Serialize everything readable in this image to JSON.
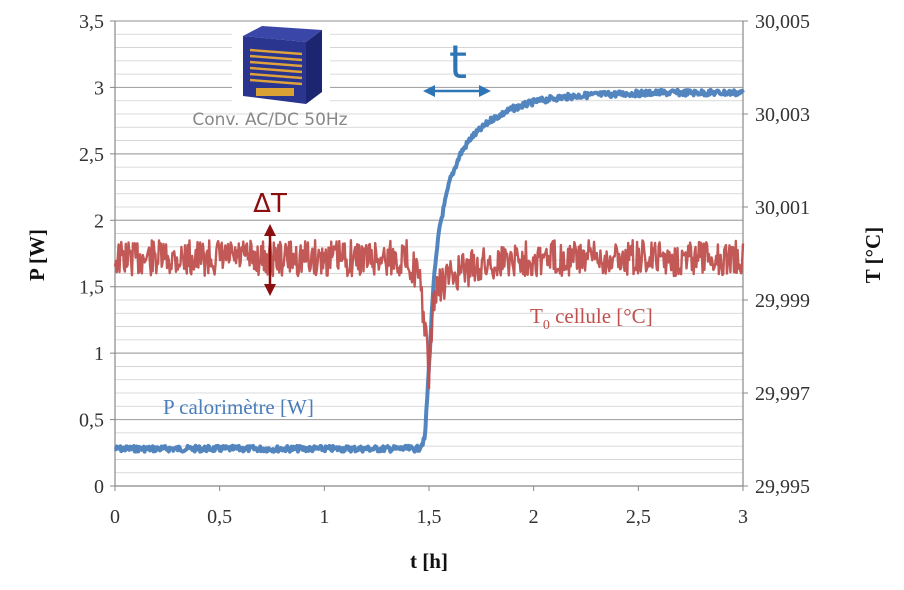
{
  "chart_data": {
    "type": "line",
    "xlabel": "t [h]",
    "ylabel_left": "P [W]",
    "ylabel_right": "T [°C]",
    "xlim": [
      0,
      3
    ],
    "ylim_left": [
      0,
      3.5
    ],
    "ylim_right": [
      29.995,
      30.005
    ],
    "x_ticks": [
      "0",
      "0,5",
      "1",
      "1,5",
      "2",
      "2,5",
      "3"
    ],
    "y_left_ticks": [
      "0",
      "0,5",
      "1",
      "1,5",
      "2",
      "2,5",
      "3",
      "3,5"
    ],
    "y_right_ticks": [
      "29,995",
      "29,997",
      "29,999",
      "30,001",
      "30,003",
      "30,005"
    ],
    "grid": true,
    "series": [
      {
        "name": "P calorimètre [W]",
        "axis": "left",
        "color": "#4a7ebb",
        "x": [
          0,
          0.25,
          0.5,
          0.75,
          1.0,
          1.25,
          1.45,
          1.48,
          1.5,
          1.52,
          1.55,
          1.6,
          1.65,
          1.7,
          1.8,
          1.9,
          2.0,
          2.1,
          2.2,
          2.3,
          2.4,
          2.5,
          2.6,
          2.75,
          3.0
        ],
        "y": [
          0.28,
          0.28,
          0.28,
          0.28,
          0.28,
          0.28,
          0.28,
          0.35,
          0.9,
          1.5,
          1.95,
          2.3,
          2.5,
          2.62,
          2.76,
          2.84,
          2.89,
          2.92,
          2.935,
          2.945,
          2.95,
          2.955,
          2.96,
          2.96,
          2.96
        ]
      },
      {
        "name": "T0 cellule [°C]",
        "label_main": "T",
        "label_sub": "0",
        "label_rest": " cellule [°C]",
        "axis": "right",
        "color": "#c0504d",
        "x": [
          0,
          0.5,
          1.0,
          1.4,
          1.45,
          1.48,
          1.5,
          1.52,
          1.55,
          1.6,
          1.7,
          1.8,
          1.9,
          2.0,
          2.25,
          2.5,
          2.75,
          3.0
        ],
        "y": [
          29.9999,
          29.9999,
          29.9999,
          29.9999,
          29.9995,
          29.9985,
          29.9973,
          29.999,
          29.9993,
          29.9995,
          29.9997,
          29.9998,
          29.9999,
          29.9999,
          29.9999,
          29.9999,
          29.9999,
          29.9999
        ]
      }
    ]
  },
  "annotations": {
    "delta_t_label": "ΔT",
    "time_label": "t",
    "device_caption": "Conv. AC/DC 50Hz",
    "delta_color": "#8b0f0f",
    "time_color": "#2e75b6"
  }
}
